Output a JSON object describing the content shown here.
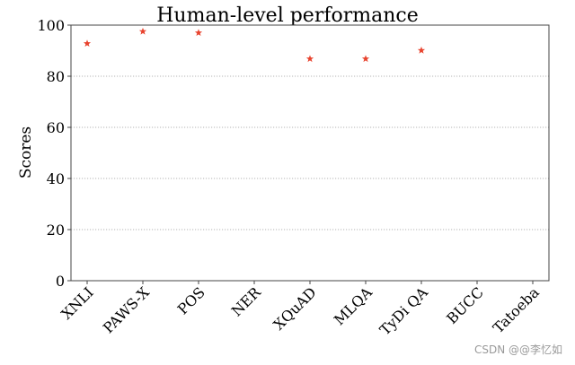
{
  "chart_data": {
    "type": "scatter",
    "title": "Human-level performance",
    "xlabel": "",
    "ylabel": "Scores",
    "ylim": [
      0,
      100
    ],
    "yticks": [
      0,
      20,
      40,
      60,
      80,
      100
    ],
    "grid": "horizontal-dotted",
    "marker": "star",
    "marker_color": "#e8432e",
    "categories": [
      "XNLI",
      "PAWS-X",
      "POS",
      "NER",
      "XQuAD",
      "MLQA",
      "TyDi QA",
      "BUCC",
      "Tatoeba"
    ],
    "values": [
      92.8,
      97.5,
      97.0,
      null,
      86.8,
      86.8,
      90.1,
      null,
      null
    ]
  },
  "watermark": "CSDN @@李忆如"
}
